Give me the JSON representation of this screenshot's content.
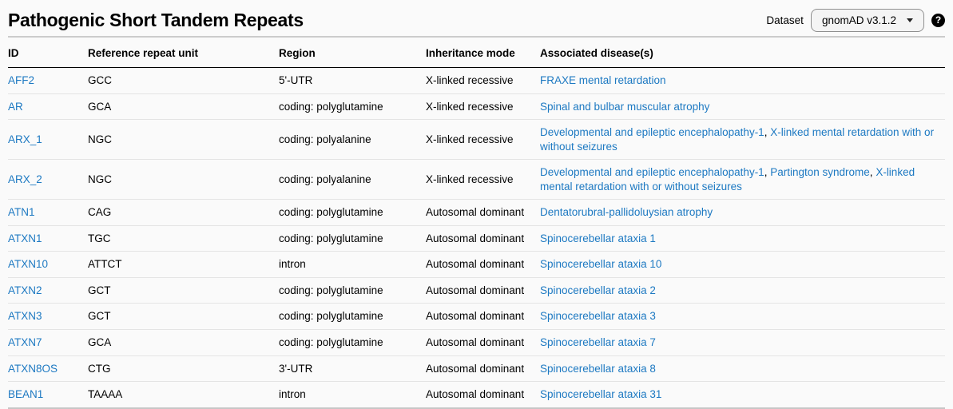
{
  "page": {
    "title": "Pathogenic Short Tandem Repeats",
    "dataset_label": "Dataset",
    "dataset_value": "gnomAD v3.1.2",
    "help_icon_glyph": "?"
  },
  "colors": {
    "link": "#1d79c2",
    "page_background": "#fafafa",
    "header_border": "#000000",
    "table_outer_border": "#cccccc",
    "row_border": "#e4e4e4",
    "button_background": "#f4f4f4",
    "button_border": "#8f8f8f",
    "help_icon_background": "#000000"
  },
  "table": {
    "columns": [
      "ID",
      "Reference repeat unit",
      "Region",
      "Inheritance mode",
      "Associated disease(s)"
    ],
    "rows": [
      {
        "id": "AFF2",
        "repeat_unit": "GCC",
        "region": "5'-UTR",
        "inheritance": "X-linked recessive",
        "diseases": [
          "FRAXE mental retardation"
        ]
      },
      {
        "id": "AR",
        "repeat_unit": "GCA",
        "region": "coding: polyglutamine",
        "inheritance": "X-linked recessive",
        "diseases": [
          "Spinal and bulbar muscular atrophy"
        ]
      },
      {
        "id": "ARX_1",
        "repeat_unit": "NGC",
        "region": "coding: polyalanine",
        "inheritance": "X-linked recessive",
        "diseases": [
          "Developmental and epileptic encephalopathy-1",
          "X-linked mental retardation with or without seizures"
        ]
      },
      {
        "id": "ARX_2",
        "repeat_unit": "NGC",
        "region": "coding: polyalanine",
        "inheritance": "X-linked recessive",
        "diseases": [
          "Developmental and epileptic encephalopathy-1",
          "Partington syndrome",
          "X-linked mental retardation with or without seizures"
        ]
      },
      {
        "id": "ATN1",
        "repeat_unit": "CAG",
        "region": "coding: polyglutamine",
        "inheritance": "Autosomal dominant",
        "diseases": [
          "Dentatorubral-pallidoluysian atrophy"
        ]
      },
      {
        "id": "ATXN1",
        "repeat_unit": "TGC",
        "region": "coding: polyglutamine",
        "inheritance": "Autosomal dominant",
        "diseases": [
          "Spinocerebellar ataxia 1"
        ]
      },
      {
        "id": "ATXN10",
        "repeat_unit": "ATTCT",
        "region": "intron",
        "inheritance": "Autosomal dominant",
        "diseases": [
          "Spinocerebellar ataxia 10"
        ]
      },
      {
        "id": "ATXN2",
        "repeat_unit": "GCT",
        "region": "coding: polyglutamine",
        "inheritance": "Autosomal dominant",
        "diseases": [
          "Spinocerebellar ataxia 2"
        ]
      },
      {
        "id": "ATXN3",
        "repeat_unit": "GCT",
        "region": "coding: polyglutamine",
        "inheritance": "Autosomal dominant",
        "diseases": [
          "Spinocerebellar ataxia 3"
        ]
      },
      {
        "id": "ATXN7",
        "repeat_unit": "GCA",
        "region": "coding: polyglutamine",
        "inheritance": "Autosomal dominant",
        "diseases": [
          "Spinocerebellar ataxia 7"
        ]
      },
      {
        "id": "ATXN8OS",
        "repeat_unit": "CTG",
        "region": "3'-UTR",
        "inheritance": "Autosomal dominant",
        "diseases": [
          "Spinocerebellar ataxia 8"
        ]
      },
      {
        "id": "BEAN1",
        "repeat_unit": "TAAAA",
        "region": "intron",
        "inheritance": "Autosomal dominant",
        "diseases": [
          "Spinocerebellar ataxia 31"
        ]
      }
    ]
  }
}
